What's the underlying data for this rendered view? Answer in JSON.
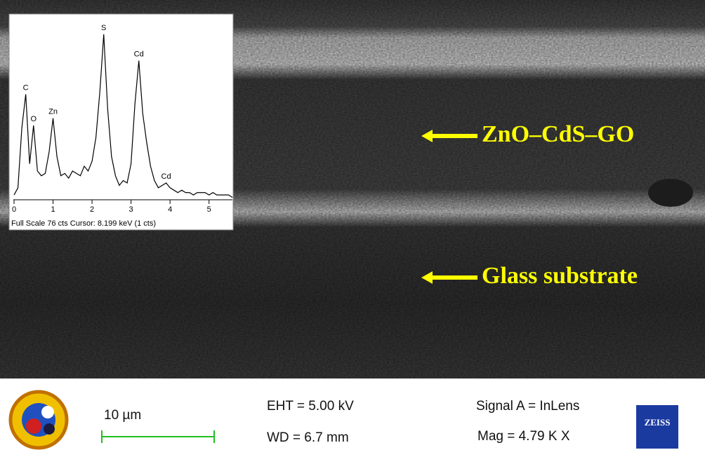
{
  "image": {
    "layer_labels": [
      "ZnO–CdS–GO",
      "Glass substrate"
    ]
  },
  "inset": {
    "type": "line",
    "caption": "Full Scale 76 cts  Cursor: 8.199 keV (1 cts)",
    "xlim": [
      0,
      5.6
    ],
    "ylim": [
      0,
      76
    ],
    "xticks": [
      0,
      1,
      2,
      3,
      4,
      5
    ],
    "x": [
      0,
      0.1,
      0.2,
      0.3,
      0.4,
      0.5,
      0.6,
      0.7,
      0.8,
      0.9,
      1.0,
      1.1,
      1.2,
      1.3,
      1.4,
      1.5,
      1.6,
      1.7,
      1.8,
      1.9,
      2.0,
      2.1,
      2.2,
      2.3,
      2.4,
      2.5,
      2.6,
      2.7,
      2.8,
      2.9,
      3.0,
      3.1,
      3.2,
      3.3,
      3.4,
      3.5,
      3.6,
      3.7,
      3.8,
      3.9,
      4.0,
      4.1,
      4.2,
      4.3,
      4.4,
      4.5,
      4.6,
      4.7,
      4.8,
      4.9,
      5.0,
      5.1,
      5.2,
      5.3,
      5.4,
      5.5,
      5.6
    ],
    "series": [
      {
        "color": "#000000",
        "values": [
          2,
          5,
          30,
          44,
          15,
          31,
          12,
          10,
          11,
          20,
          34,
          18,
          10,
          11,
          9,
          12,
          11,
          10,
          14,
          12,
          16,
          26,
          45,
          69,
          38,
          18,
          10,
          6,
          8,
          7,
          15,
          40,
          58,
          36,
          24,
          14,
          8,
          5,
          6,
          7,
          5,
          4,
          3,
          4,
          3,
          3,
          2,
          3,
          3,
          3,
          2,
          3,
          2,
          2,
          2,
          2,
          1
        ]
      }
    ],
    "annotations": [
      {
        "text": "C",
        "x": 0.3
      },
      {
        "text": "O",
        "x": 0.5
      },
      {
        "text": "Zn",
        "x": 1.0
      },
      {
        "text": "S",
        "x": 2.3
      },
      {
        "text": "Cd",
        "x": 3.2
      },
      {
        "text": "Cd",
        "x": 3.9
      }
    ]
  },
  "footer": {
    "scale_bar": "10 µm",
    "eht": "EHT = 5.00 kV",
    "wd": "WD = 6.7 mm",
    "signal": "Signal A = InLens",
    "mag": "Mag = 4.79 K X",
    "brand": "ZEISS"
  }
}
